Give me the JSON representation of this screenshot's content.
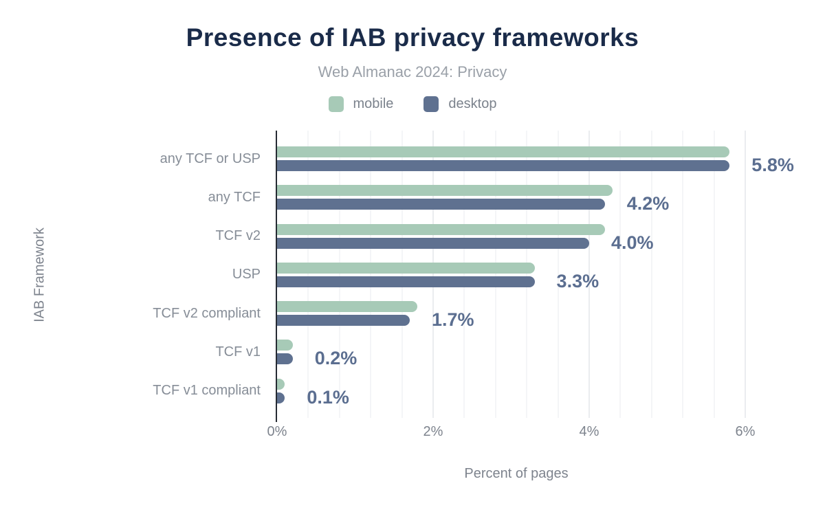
{
  "chart": {
    "title": "Presence of IAB privacy frameworks",
    "subtitle": "Web Almanac 2024: Privacy"
  },
  "chart_data": {
    "type": "bar",
    "orientation": "horizontal",
    "title": "Presence of IAB privacy frameworks",
    "subtitle": "Web Almanac 2024: Privacy",
    "categories": [
      "any TCF or USP",
      "any TCF",
      "TCF v2",
      "USP",
      "TCF v2 compliant",
      "TCF v1",
      "TCF v1 compliant"
    ],
    "series": [
      {
        "name": "mobile",
        "color": "#a7cab7",
        "values": [
          5.8,
          4.3,
          4.2,
          3.3,
          1.8,
          0.2,
          0.1
        ]
      },
      {
        "name": "desktop",
        "color": "#5f7190",
        "values": [
          5.8,
          4.2,
          4.0,
          3.3,
          1.7,
          0.2,
          0.1
        ]
      }
    ],
    "data_labels": [
      "5.8%",
      "4.2%",
      "4.0%",
      "3.3%",
      "1.7%",
      "0.2%",
      "0.1%"
    ],
    "xlabel": "Percent of pages",
    "ylabel": "IAB Framework",
    "xlim": [
      0,
      6.14
    ],
    "xticks": [
      {
        "value": 0,
        "label": "0%"
      },
      {
        "value": 2,
        "label": "2%"
      },
      {
        "value": 4,
        "label": "4%"
      },
      {
        "value": 6,
        "label": "6%"
      }
    ],
    "grid": "vertical-minor",
    "grid_minor_step": 0.4,
    "legend_position": "top",
    "colors": {
      "title": "#1a2b49",
      "subtitle": "#9aa0a8",
      "value_label": "#5b6e90",
      "axis_text": "#7d838d",
      "category_text": "#868d97",
      "axis_line": "#262b33",
      "grid_minor": "#f4f5f7",
      "grid_major": "#eaecef",
      "background": "#ffffff"
    }
  }
}
